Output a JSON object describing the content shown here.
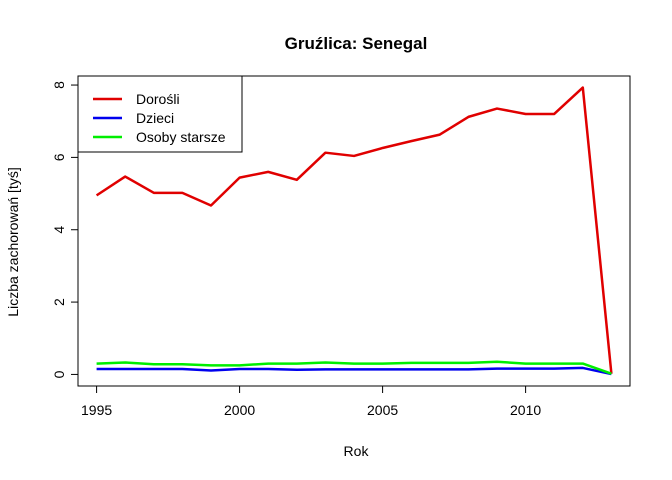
{
  "chart_data": {
    "type": "line",
    "title": "Gruźlica: Senegal",
    "xlabel": "Rok",
    "ylabel": "Liczba zachorowań [tyś]",
    "xlim": [
      1994.35,
      2013.65
    ],
    "ylim": [
      -0.32,
      8.25
    ],
    "xticks": [
      1995,
      2000,
      2005,
      2010
    ],
    "yticks": [
      0,
      2,
      4,
      6,
      8
    ],
    "grid": false,
    "legend_position": "top-left",
    "x": [
      1995,
      1996,
      1997,
      1998,
      1999,
      2000,
      2001,
      2002,
      2003,
      2004,
      2005,
      2006,
      2007,
      2008,
      2009,
      2010,
      2011,
      2012,
      2013
    ],
    "series": [
      {
        "name": "Dorośli",
        "color": "#e00000",
        "values": [
          4.95,
          5.47,
          5.02,
          5.02,
          4.67,
          5.44,
          5.6,
          5.38,
          6.13,
          6.04,
          6.26,
          6.45,
          6.63,
          7.12,
          7.35,
          7.2,
          7.2,
          7.93,
          0.02
        ]
      },
      {
        "name": "Dzieci",
        "color": "#0000ee",
        "values": [
          0.15,
          0.15,
          0.15,
          0.15,
          0.11,
          0.15,
          0.15,
          0.13,
          0.14,
          0.14,
          0.14,
          0.14,
          0.14,
          0.14,
          0.16,
          0.16,
          0.16,
          0.18,
          0.01
        ]
      },
      {
        "name": "Osoby starsze",
        "color": "#00ee00",
        "values": [
          0.3,
          0.33,
          0.28,
          0.28,
          0.25,
          0.25,
          0.3,
          0.3,
          0.33,
          0.3,
          0.3,
          0.32,
          0.32,
          0.32,
          0.35,
          0.3,
          0.3,
          0.3,
          0.02
        ]
      }
    ]
  }
}
